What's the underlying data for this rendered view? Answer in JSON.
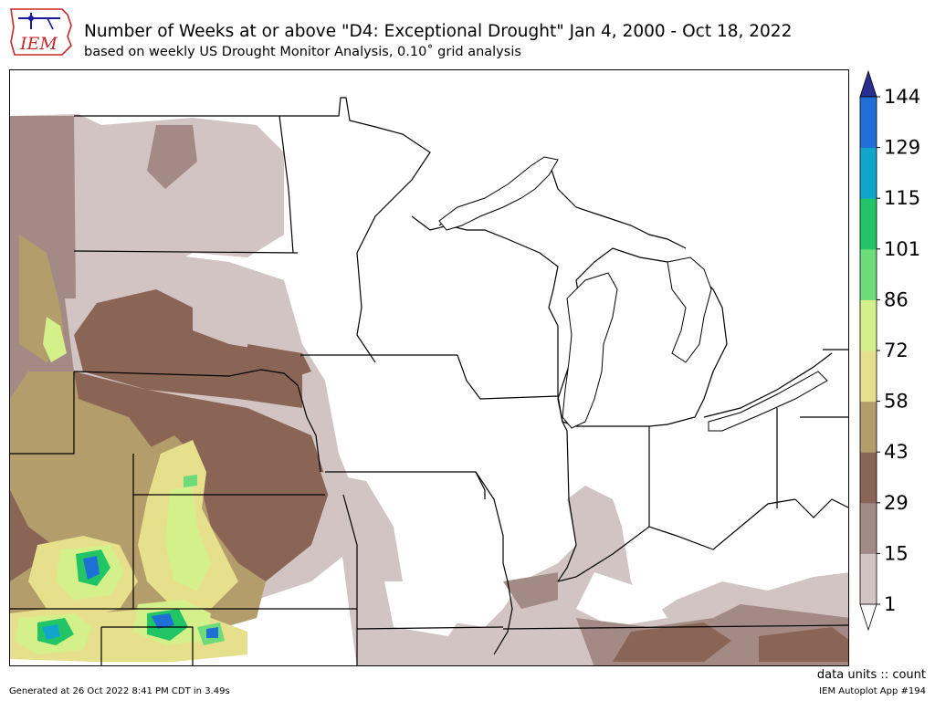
{
  "header": {
    "title": "Number of Weeks at or above \"D4: Exceptional Drought\" Jan 4, 2000 - Oct 18, 2022",
    "subtitle": "based on weekly US Drought Monitor Analysis, 0.10˚ grid analysis",
    "logo_text": "IEM"
  },
  "colorbar": {
    "tick_labels": [
      "1",
      "15",
      "29",
      "43",
      "58",
      "72",
      "86",
      "101",
      "115",
      "129",
      "144"
    ],
    "colors": [
      "#d1c4c2",
      "#a48a84",
      "#8a6555",
      "#b39d6a",
      "#e6df8c",
      "#d4f08a",
      "#6edb7b",
      "#22c566",
      "#12a5cc",
      "#1e6fd6"
    ],
    "over_color": "#2b2d8f",
    "under_color": "#ffffff"
  },
  "footer": {
    "units": "data units :: count",
    "generated": "Generated at 26 Oct 2022 8:41 PM CDT in 3.49s",
    "app": "IEM Autoplot App #194"
  }
}
